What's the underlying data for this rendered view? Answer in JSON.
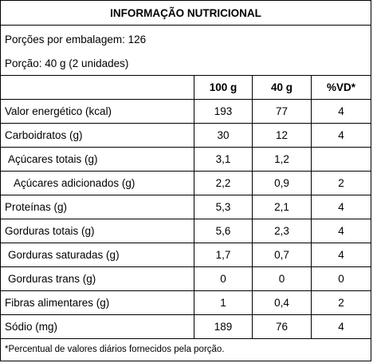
{
  "title": "INFORMAÇÃO NUTRICIONAL",
  "portions_per_package": "Porções por embalagem: 126",
  "portion": "Porção: 40 g (2 unidades)",
  "table": {
    "headers": [
      "",
      "100 g",
      "40 g",
      "%VD*"
    ],
    "rows": [
      {
        "name": "Valor energético (kcal)",
        "per100": "193",
        "per40": "77",
        "vd": "4"
      },
      {
        "name": "Carboidratos (g)",
        "per100": "30",
        "per40": "12",
        "vd": "4"
      },
      {
        "name": "Açúcares totais (g)",
        "per100": "3,1",
        "per40": "1,2",
        "vd": ""
      },
      {
        "name": "Açúcares adicionados (g)",
        "per100": "2,2",
        "per40": "0,9",
        "vd": "2"
      },
      {
        "name": "Proteínas (g)",
        "per100": "5,3",
        "per40": "2,1",
        "vd": "4"
      },
      {
        "name": "Gorduras totais (g)",
        "per100": "5,6",
        "per40": "2,3",
        "vd": "4"
      },
      {
        "name": "Gorduras saturadas (g)",
        "per100": "1,7",
        "per40": "0,7",
        "vd": "4"
      },
      {
        "name": "Gorduras trans (g)",
        "per100": "0",
        "per40": "0",
        "vd": "0"
      },
      {
        "name": "Fibras alimentares (g)",
        "per100": "1",
        "per40": "0,4",
        "vd": "2"
      },
      {
        "name": "Sódio (mg)",
        "per100": "189",
        "per40": "76",
        "vd": "4"
      }
    ]
  },
  "footnote": "*Percentual de valores diários fornecidos pela porção."
}
